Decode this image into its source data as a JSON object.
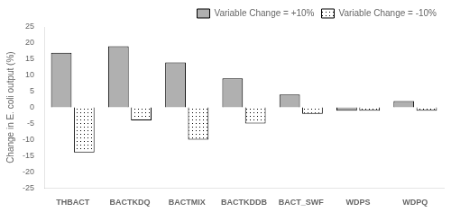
{
  "chart_data": {
    "type": "bar",
    "categories": [
      "THBACT",
      "BACTKDQ",
      "BACTMIX",
      "BACTKDDB",
      "BACT_SWF",
      "WDPS",
      "WDPQ"
    ],
    "series": [
      {
        "name": "Variable Change = +10%",
        "color": "#b0b0b0",
        "values": [
          17,
          19,
          14,
          9,
          4,
          -1,
          2
        ]
      },
      {
        "name": "Variable Change = -10%",
        "color": "#ffffff",
        "values": [
          -14,
          -4,
          -10,
          -5,
          -2,
          -1,
          -1
        ]
      }
    ],
    "y_label": "Change in E. coli output (%)",
    "ylim": [
      -25,
      25
    ],
    "yticks": [
      -25,
      -20,
      -15,
      -10,
      -5,
      0,
      5,
      10,
      15,
      20,
      25
    ],
    "grid": false,
    "legend": "upper right"
  }
}
